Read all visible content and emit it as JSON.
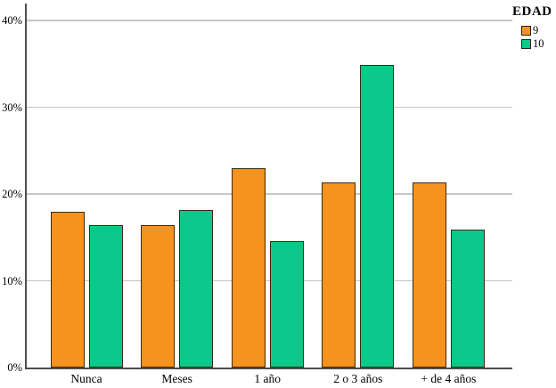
{
  "chart_data": {
    "type": "bar",
    "title": "",
    "xlabel": "",
    "ylabel": "",
    "categories": [
      "Nunca",
      "Meses",
      "1 año",
      "2 o 3 años",
      "+ de 4 años"
    ],
    "series": [
      {
        "name": "9",
        "color": "#F6921E",
        "values": [
          18.0,
          16.4,
          23.0,
          21.3,
          21.3
        ]
      },
      {
        "name": "10",
        "color": "#0CC98B",
        "values": [
          16.4,
          18.2,
          14.6,
          34.9,
          15.9
        ]
      }
    ],
    "ylim": [
      0,
      40
    ],
    "yticks": [
      "0%",
      "10%",
      "20%",
      "30%",
      "40%"
    ],
    "ytick_values": [
      0,
      10,
      20,
      30,
      40
    ],
    "grid": true,
    "legend": {
      "title": "EDAD",
      "labels": [
        "9",
        "10"
      ],
      "position": "top-right"
    }
  },
  "colors": {
    "background": "#FFFFFF",
    "axis": "#4D4D4D",
    "grid": "#C7C7C7",
    "bar_border": "#3A2B10",
    "text": "#000000",
    "series_9": "#F6921E",
    "series_10": "#0CC98B"
  }
}
